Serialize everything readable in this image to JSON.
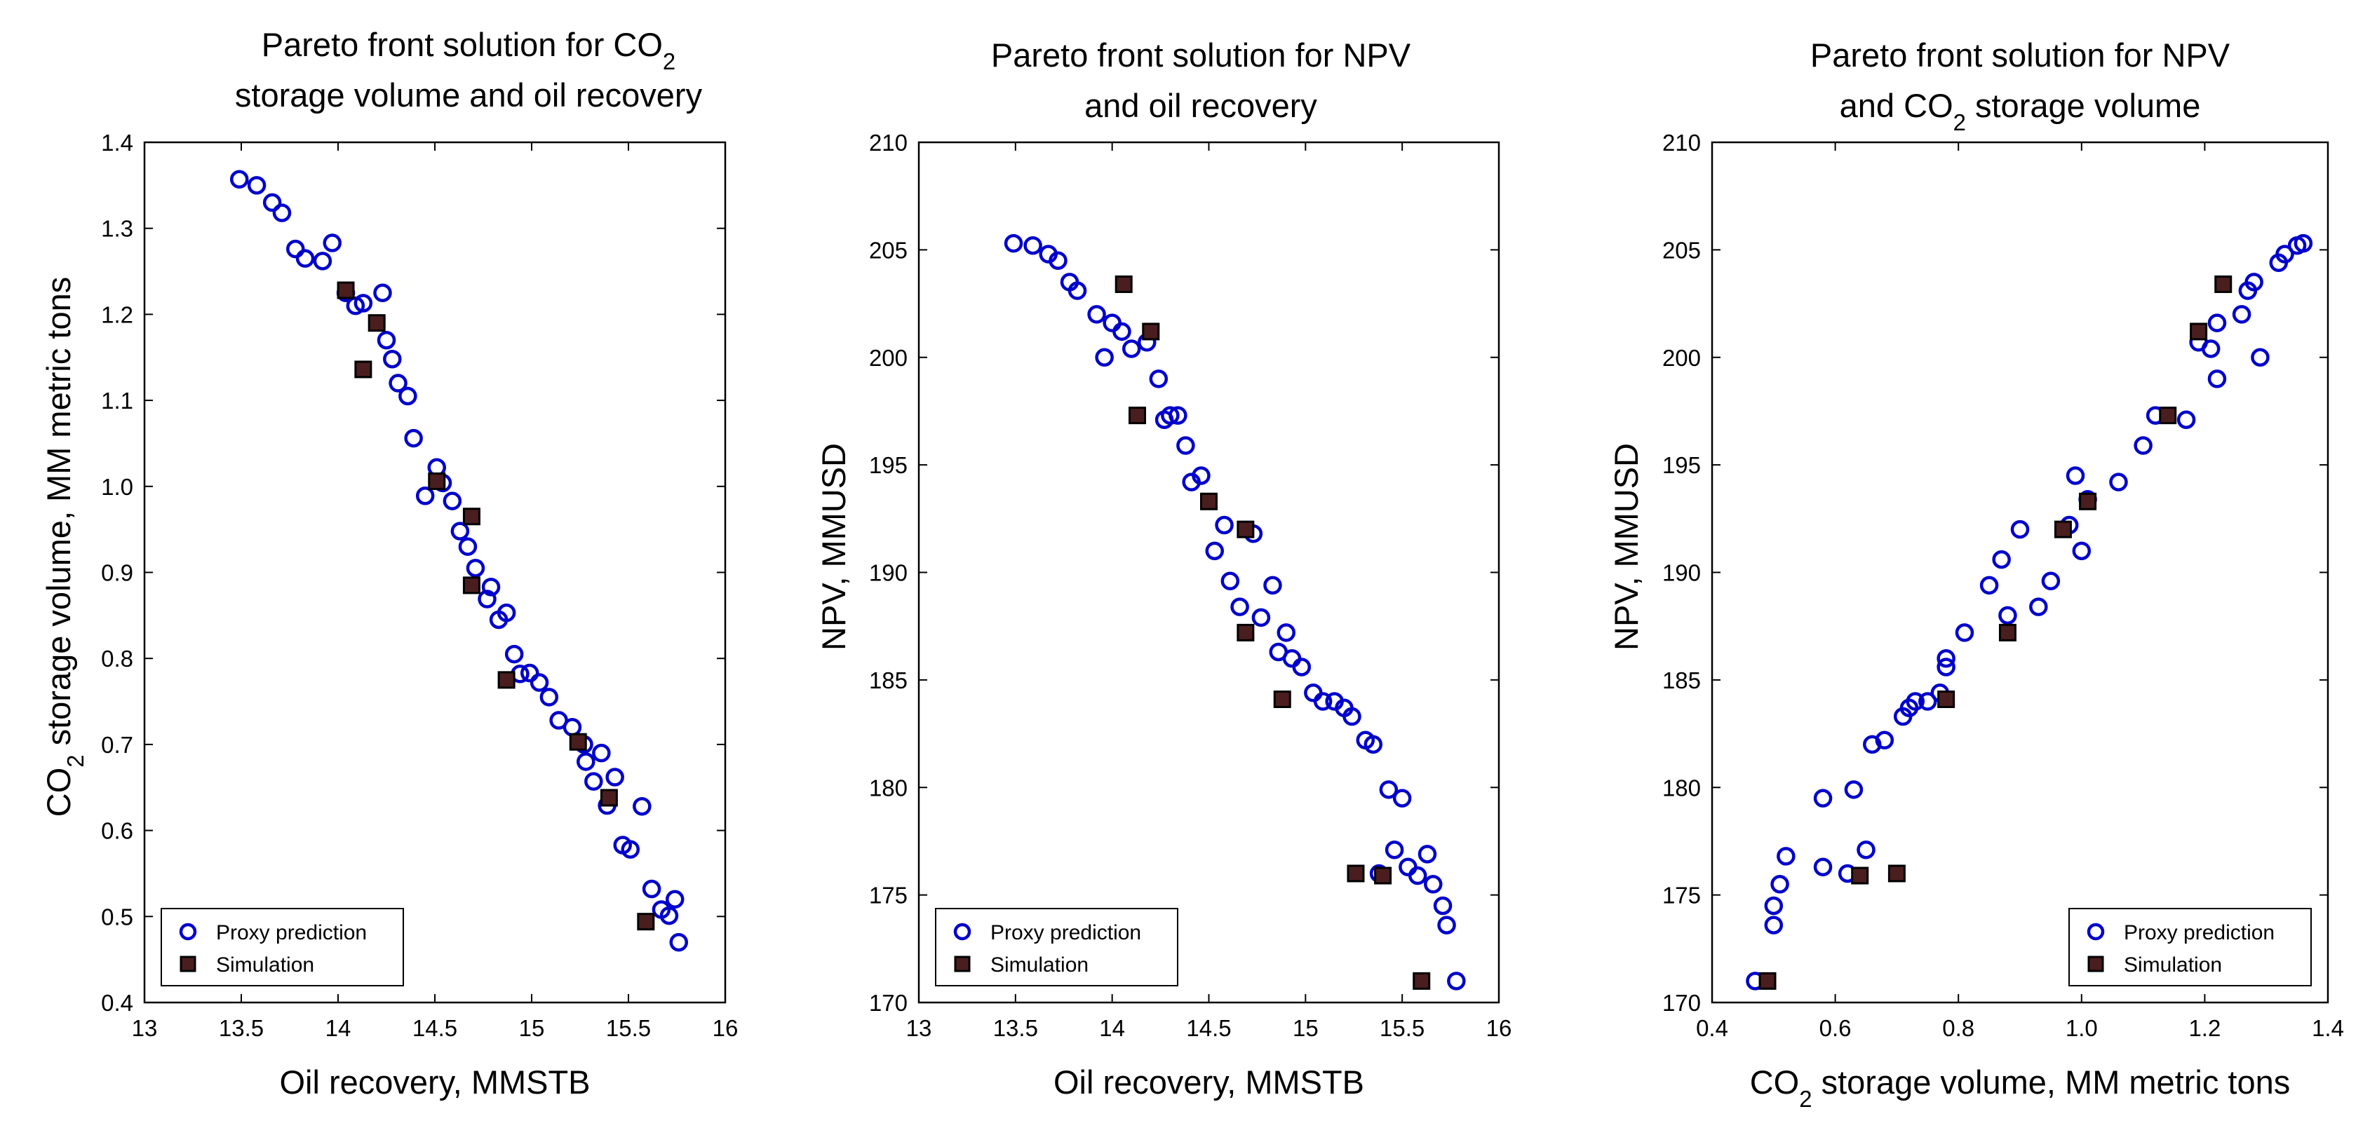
{
  "figure": {
    "colors": {
      "proxy": "#0000cc",
      "simulation": "#000000",
      "simulation_fill": "#4a1e1e",
      "axis": "#000000",
      "background": "#ffffff"
    },
    "legend": {
      "proxy_label": "Proxy prediction",
      "simulation_label": "Simulation"
    }
  },
  "chart_data": [
    {
      "type": "scatter",
      "title_lines": [
        {
          "pre": "Pareto front solution  for CO",
          "sub": "2",
          "post": ""
        },
        {
          "pre": "storage volume  and oil recovery",
          "sub": "",
          "post": ""
        }
      ],
      "xlabel": {
        "pre": "Oil recovery, MMSTB",
        "sub": "",
        "post": ""
      },
      "ylabel": {
        "pre": "CO",
        "sub": "2",
        "post": " storage volume,  MM metric tons"
      },
      "xlim": [
        13,
        16
      ],
      "ylim": [
        0.4,
        1.4
      ],
      "xticks": [
        13,
        13.5,
        14,
        14.5,
        15,
        15.5,
        16
      ],
      "yticks": [
        0.4,
        0.5,
        0.6,
        0.7,
        0.8,
        0.9,
        1.0,
        1.1,
        1.2,
        1.3,
        1.4
      ],
      "xtick_labels": [
        "13",
        "13.5",
        "14",
        "14.5",
        "15",
        "15.5",
        "16"
      ],
      "ytick_labels": [
        "0.4",
        "0.5",
        "0.6",
        "0.7",
        "0.8",
        "0.9",
        "1.0",
        "1.1",
        "1.2",
        "1.3",
        "1.4"
      ],
      "legend_position": "bottom-left",
      "series": [
        {
          "name": "Proxy prediction",
          "marker": "circle",
          "points": [
            [
              13.49,
              1.357
            ],
            [
              13.58,
              1.35
            ],
            [
              13.66,
              1.33
            ],
            [
              13.71,
              1.318
            ],
            [
              13.78,
              1.276
            ],
            [
              13.83,
              1.265
            ],
            [
              13.92,
              1.262
            ],
            [
              13.97,
              1.283
            ],
            [
              14.04,
              1.225
            ],
            [
              14.09,
              1.21
            ],
            [
              14.13,
              1.213
            ],
            [
              14.23,
              1.225
            ],
            [
              14.25,
              1.17
            ],
            [
              14.28,
              1.148
            ],
            [
              14.31,
              1.12
            ],
            [
              14.36,
              1.105
            ],
            [
              14.39,
              1.056
            ],
            [
              14.45,
              0.989
            ],
            [
              14.51,
              1.022
            ],
            [
              14.54,
              1.004
            ],
            [
              14.59,
              0.983
            ],
            [
              14.63,
              0.948
            ],
            [
              14.67,
              0.93
            ],
            [
              14.71,
              0.905
            ],
            [
              14.77,
              0.869
            ],
            [
              14.79,
              0.883
            ],
            [
              14.83,
              0.845
            ],
            [
              14.87,
              0.853
            ],
            [
              14.91,
              0.805
            ],
            [
              14.94,
              0.782
            ],
            [
              14.99,
              0.783
            ],
            [
              15.04,
              0.772
            ],
            [
              15.09,
              0.755
            ],
            [
              15.14,
              0.728
            ],
            [
              15.21,
              0.72
            ],
            [
              15.27,
              0.7
            ],
            [
              15.28,
              0.68
            ],
            [
              15.32,
              0.657
            ],
            [
              15.36,
              0.69
            ],
            [
              15.39,
              0.629
            ],
            [
              15.43,
              0.662
            ],
            [
              15.47,
              0.583
            ],
            [
              15.51,
              0.578
            ],
            [
              15.57,
              0.628
            ],
            [
              15.62,
              0.532
            ],
            [
              15.67,
              0.508
            ],
            [
              15.71,
              0.501
            ],
            [
              15.74,
              0.52
            ],
            [
              15.76,
              0.47
            ]
          ]
        },
        {
          "name": "Simulation",
          "marker": "square",
          "points": [
            [
              14.04,
              1.228
            ],
            [
              14.13,
              1.136
            ],
            [
              14.2,
              1.19
            ],
            [
              14.51,
              1.006
            ],
            [
              14.69,
              0.965
            ],
            [
              14.69,
              0.885
            ],
            [
              14.87,
              0.775
            ],
            [
              15.24,
              0.703
            ],
            [
              15.4,
              0.638
            ],
            [
              15.59,
              0.494
            ]
          ]
        }
      ]
    },
    {
      "type": "scatter",
      "title_lines": [
        {
          "pre": "Pareto front solution  for NPV",
          "sub": "",
          "post": ""
        },
        {
          "pre": "and oil recovery",
          "sub": "",
          "post": ""
        }
      ],
      "xlabel": {
        "pre": "Oil recovery, MMSTB",
        "sub": "",
        "post": ""
      },
      "ylabel": {
        "pre": "NPV,  MMUSD",
        "sub": "",
        "post": ""
      },
      "xlim": [
        13,
        16
      ],
      "ylim": [
        170,
        210
      ],
      "xticks": [
        13,
        13.5,
        14,
        14.5,
        15,
        15.5,
        16
      ],
      "yticks": [
        170,
        175,
        180,
        185,
        190,
        195,
        200,
        205,
        210
      ],
      "xtick_labels": [
        "13",
        "13.5",
        "14",
        "14.5",
        "15",
        "15.5",
        "16"
      ],
      "ytick_labels": [
        "170",
        "175",
        "180",
        "185",
        "190",
        "195",
        "200",
        "205",
        "210"
      ],
      "legend_position": "bottom-left",
      "series": [
        {
          "name": "Proxy prediction",
          "marker": "circle",
          "points": [
            [
              13.49,
              205.3
            ],
            [
              13.59,
              205.2
            ],
            [
              13.67,
              204.8
            ],
            [
              13.72,
              204.5
            ],
            [
              13.78,
              203.5
            ],
            [
              13.82,
              203.1
            ],
            [
              13.92,
              202.0
            ],
            [
              13.96,
              200.0
            ],
            [
              14.0,
              201.6
            ],
            [
              14.05,
              201.2
            ],
            [
              14.1,
              200.4
            ],
            [
              14.18,
              200.7
            ],
            [
              14.24,
              199.0
            ],
            [
              14.27,
              197.1
            ],
            [
              14.3,
              197.3
            ],
            [
              14.34,
              197.3
            ],
            [
              14.38,
              195.9
            ],
            [
              14.41,
              194.2
            ],
            [
              14.46,
              194.5
            ],
            [
              14.53,
              191.0
            ],
            [
              14.58,
              192.2
            ],
            [
              14.61,
              189.6
            ],
            [
              14.66,
              188.4
            ],
            [
              14.73,
              191.8
            ],
            [
              14.77,
              187.9
            ],
            [
              14.83,
              189.4
            ],
            [
              14.86,
              186.3
            ],
            [
              14.9,
              187.2
            ],
            [
              14.93,
              186.0
            ],
            [
              14.98,
              185.6
            ],
            [
              15.04,
              184.4
            ],
            [
              15.09,
              184.0
            ],
            [
              15.15,
              184.0
            ],
            [
              15.2,
              183.7
            ],
            [
              15.24,
              183.3
            ],
            [
              15.31,
              182.2
            ],
            [
              15.35,
              182.0
            ],
            [
              15.38,
              176.0
            ],
            [
              15.43,
              179.9
            ],
            [
              15.46,
              177.1
            ],
            [
              15.5,
              179.5
            ],
            [
              15.53,
              176.3
            ],
            [
              15.58,
              175.9
            ],
            [
              15.63,
              176.9
            ],
            [
              15.66,
              175.5
            ],
            [
              15.71,
              174.5
            ],
            [
              15.73,
              173.6
            ],
            [
              15.78,
              171.0
            ]
          ]
        },
        {
          "name": "Simulation",
          "marker": "square",
          "points": [
            [
              14.06,
              203.4
            ],
            [
              14.13,
              197.3
            ],
            [
              14.2,
              201.2
            ],
            [
              14.5,
              193.3
            ],
            [
              14.69,
              192.0
            ],
            [
              14.69,
              187.2
            ],
            [
              14.88,
              184.1
            ],
            [
              15.26,
              176.0
            ],
            [
              15.4,
              175.9
            ],
            [
              15.6,
              171.0
            ]
          ]
        }
      ]
    },
    {
      "type": "scatter",
      "title_lines": [
        {
          "pre": "Pareto front solution  for NPV",
          "sub": "",
          "post": ""
        },
        {
          "pre": "and CO",
          "sub": "2",
          "post": " storage volume"
        }
      ],
      "xlabel": {
        "pre": "CO",
        "sub": "2",
        "post": " storage volume,  MM metric tons"
      },
      "ylabel": {
        "pre": "NPV,  MMUSD",
        "sub": "",
        "post": ""
      },
      "xlim": [
        0.4,
        1.4
      ],
      "ylim": [
        170,
        210
      ],
      "xticks": [
        0.4,
        0.6,
        0.8,
        1.0,
        1.2,
        1.4
      ],
      "yticks": [
        170,
        175,
        180,
        185,
        190,
        195,
        200,
        205,
        210
      ],
      "xtick_labels": [
        "0.4",
        "0.6",
        "0.8",
        "1.0",
        "1.2",
        "1.4"
      ],
      "ytick_labels": [
        "170",
        "175",
        "180",
        "185",
        "190",
        "195",
        "200",
        "205",
        "210"
      ],
      "legend_position": "bottom-right",
      "series": [
        {
          "name": "Proxy prediction",
          "marker": "circle",
          "points": [
            [
              0.47,
              171.0
            ],
            [
              0.5,
              173.6
            ],
            [
              0.5,
              174.5
            ],
            [
              0.51,
              175.5
            ],
            [
              0.52,
              176.8
            ],
            [
              0.58,
              176.3
            ],
            [
              0.58,
              179.5
            ],
            [
              0.62,
              176.0
            ],
            [
              0.63,
              179.9
            ],
            [
              0.65,
              177.1
            ],
            [
              0.66,
              182.0
            ],
            [
              0.68,
              182.2
            ],
            [
              0.71,
              183.3
            ],
            [
              0.72,
              183.7
            ],
            [
              0.73,
              184.0
            ],
            [
              0.75,
              184.0
            ],
            [
              0.77,
              184.4
            ],
            [
              0.78,
              185.6
            ],
            [
              0.78,
              186.0
            ],
            [
              0.81,
              187.2
            ],
            [
              0.85,
              189.4
            ],
            [
              0.87,
              190.6
            ],
            [
              0.88,
              188.0
            ],
            [
              0.9,
              192.0
            ],
            [
              0.93,
              188.4
            ],
            [
              0.95,
              189.6
            ],
            [
              0.98,
              192.2
            ],
            [
              0.99,
              194.5
            ],
            [
              1.0,
              191.0
            ],
            [
              1.01,
              193.4
            ],
            [
              1.06,
              194.2
            ],
            [
              1.1,
              195.9
            ],
            [
              1.12,
              197.3
            ],
            [
              1.17,
              197.1
            ],
            [
              1.19,
              200.7
            ],
            [
              1.21,
              200.4
            ],
            [
              1.22,
              201.6
            ],
            [
              1.22,
              199.0
            ],
            [
              1.26,
              202.0
            ],
            [
              1.27,
              203.1
            ],
            [
              1.28,
              203.5
            ],
            [
              1.29,
              200.0
            ],
            [
              1.32,
              204.4
            ],
            [
              1.33,
              204.8
            ],
            [
              1.35,
              205.2
            ],
            [
              1.36,
              205.3
            ]
          ]
        },
        {
          "name": "Simulation",
          "marker": "square",
          "points": [
            [
              0.49,
              171.0
            ],
            [
              0.64,
              175.9
            ],
            [
              0.7,
              176.0
            ],
            [
              0.78,
              184.1
            ],
            [
              0.88,
              187.2
            ],
            [
              0.97,
              192.0
            ],
            [
              1.01,
              193.3
            ],
            [
              1.14,
              197.3
            ],
            [
              1.19,
              201.2
            ],
            [
              1.23,
              203.4
            ]
          ]
        }
      ]
    }
  ]
}
